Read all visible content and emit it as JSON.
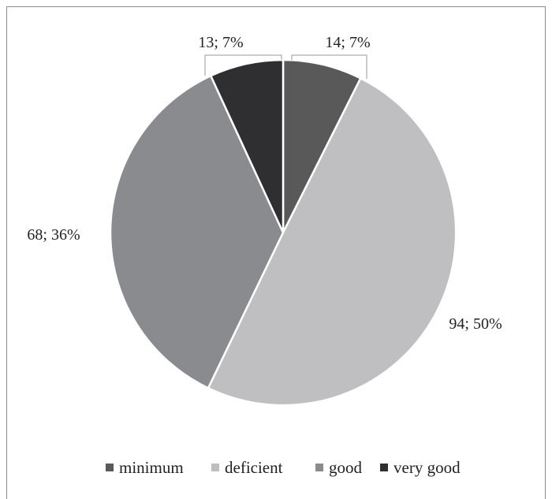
{
  "chart_data": {
    "type": "pie",
    "categories": [
      "minimum",
      "deficient",
      "good",
      "very good"
    ],
    "values": [
      14,
      94,
      68,
      13
    ],
    "percents": [
      "7%",
      "50%",
      "36%",
      "7%"
    ],
    "labels": [
      "14; 7%",
      "94; 50%",
      "68; 36%",
      "13; 7%"
    ],
    "colors": [
      "#595959",
      "#bfbfc1",
      "#8a8b8e",
      "#2f2e31"
    ],
    "start_angle_deg": 0,
    "direction": "clockwise",
    "legend": {
      "position": "bottom",
      "entries": [
        "minimum",
        "deficient",
        "good",
        "very good"
      ]
    },
    "title": ""
  }
}
